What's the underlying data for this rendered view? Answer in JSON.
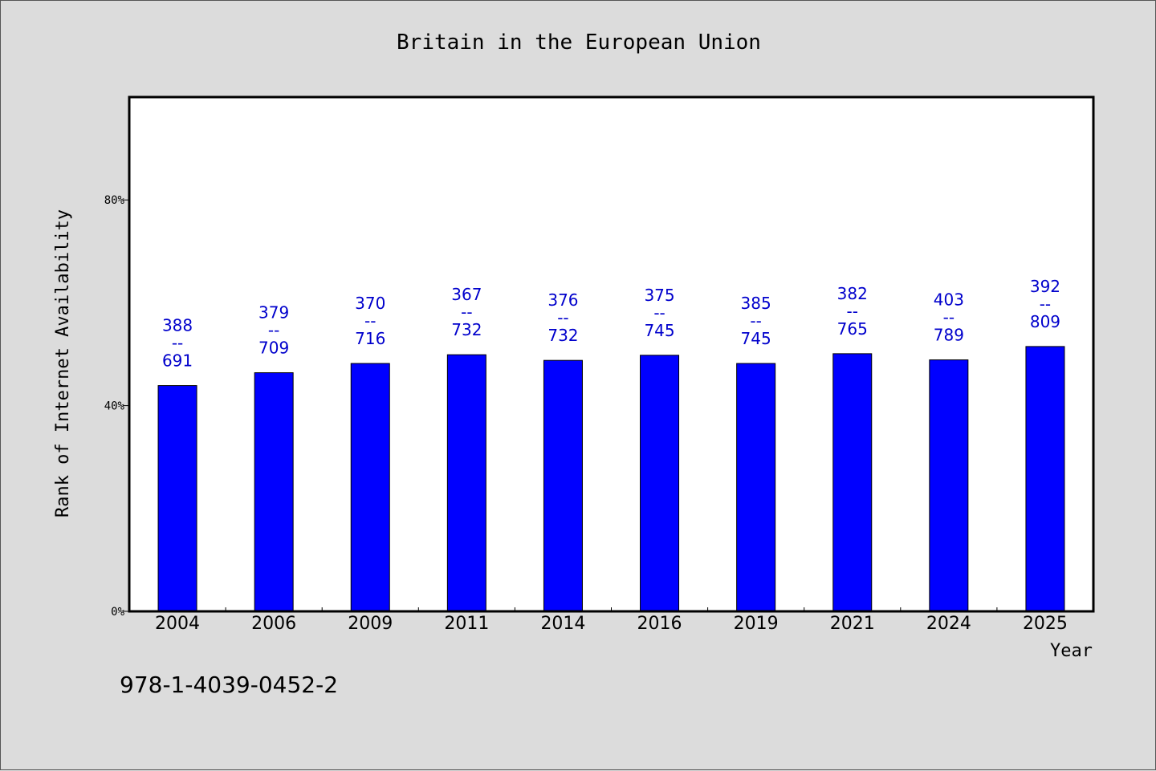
{
  "chart_data": {
    "type": "bar",
    "title": "Britain in the European Union",
    "xlabel": "Year",
    "ylabel": "Rank of Internet Availability",
    "categories": [
      "2004",
      "2006",
      "2009",
      "2011",
      "2014",
      "2016",
      "2019",
      "2021",
      "2024",
      "2025"
    ],
    "values": [
      43.9,
      46.4,
      48.2,
      49.9,
      48.8,
      49.8,
      48.2,
      50.1,
      48.9,
      51.5
    ],
    "value_unit": "%",
    "data_labels": [
      {
        "top": "388",
        "sep": "--",
        "bottom": "691"
      },
      {
        "top": "379",
        "sep": "--",
        "bottom": "709"
      },
      {
        "top": "370",
        "sep": "--",
        "bottom": "716"
      },
      {
        "top": "367",
        "sep": "--",
        "bottom": "732"
      },
      {
        "top": "376",
        "sep": "--",
        "bottom": "732"
      },
      {
        "top": "375",
        "sep": "--",
        "bottom": "745"
      },
      {
        "top": "385",
        "sep": "--",
        "bottom": "745"
      },
      {
        "top": "382",
        "sep": "--",
        "bottom": "765"
      },
      {
        "top": "403",
        "sep": "--",
        "bottom": "789"
      },
      {
        "top": "392",
        "sep": "--",
        "bottom": "809"
      }
    ],
    "yticks": [
      0,
      40,
      80
    ],
    "ytick_labels": [
      "0%",
      "40%",
      "80%"
    ],
    "ylim": [
      0,
      100
    ],
    "grid": false,
    "legend": "none",
    "colors": {
      "bar": "#0000ff",
      "label": "#0000cc",
      "plot_background": "#ffffff",
      "page_background": "#dcdcdc"
    }
  },
  "footnote": "978-1-4039-0452-2"
}
